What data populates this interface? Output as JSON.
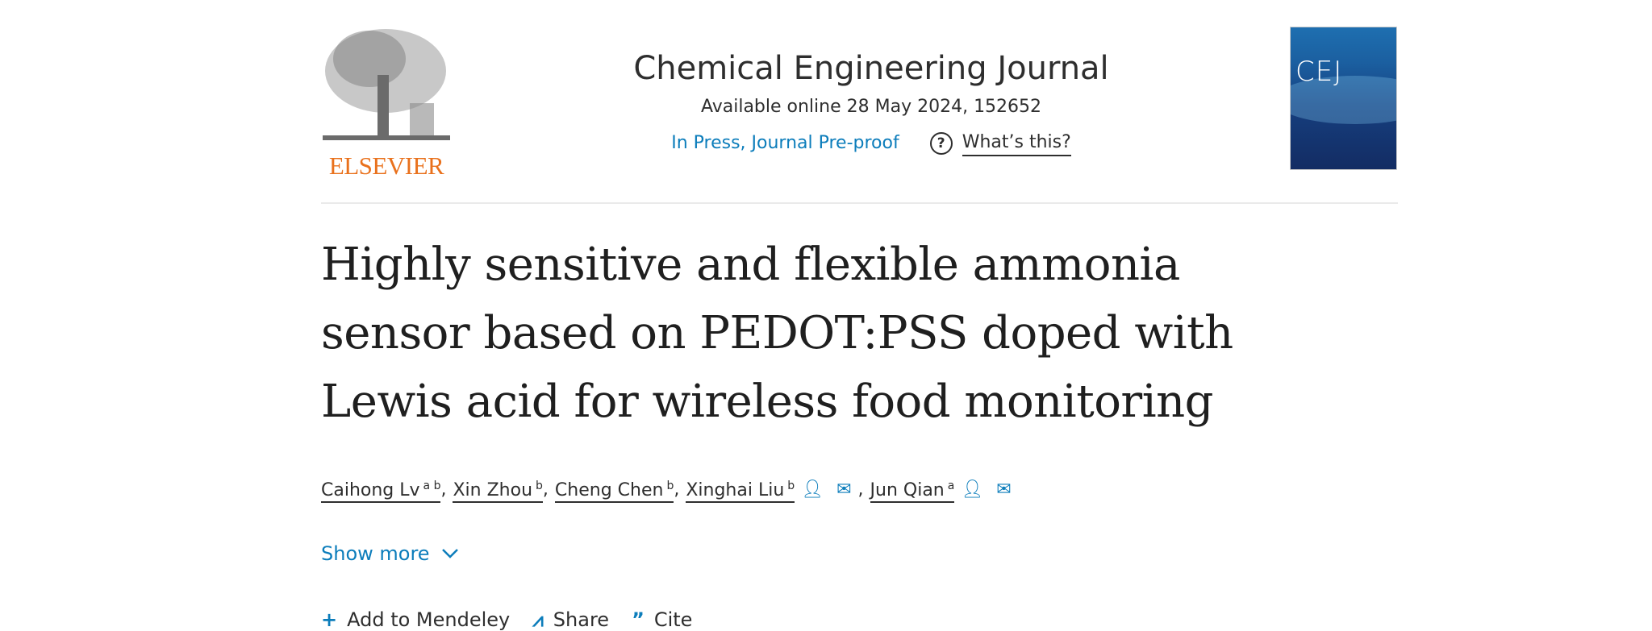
{
  "publisher": {
    "name": "ELSEVIER"
  },
  "journal": {
    "title": "Chemical Engineering Journal",
    "available": "Available online 28 May 2024, 152652",
    "status": "In Press, Journal Pre-proof",
    "whats_this": "What’s this?",
    "cover_text": "CEJ"
  },
  "article": {
    "title": "Highly sensitive and flexible ammonia sensor based on PEDOT:PSS doped with Lewis acid for wireless food monitoring",
    "authors": [
      {
        "name": "Caihong Lv",
        "aff": "a b"
      },
      {
        "name": "Xin Zhou",
        "aff": "b"
      },
      {
        "name": "Cheng Chen",
        "aff": "b"
      },
      {
        "name": "Xinghai Liu",
        "aff": "b"
      },
      {
        "name": "Jun Qian",
        "aff": "a"
      }
    ],
    "show_more": "Show more"
  },
  "actions": {
    "mendeley": "Add to Mendeley",
    "share": "Share",
    "cite": "Cite"
  },
  "colors": {
    "accent": "#0c7dbb",
    "brand": "#e9711c"
  }
}
